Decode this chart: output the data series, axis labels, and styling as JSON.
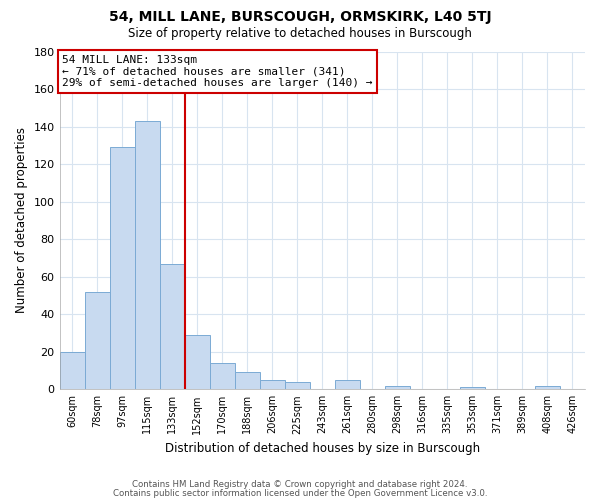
{
  "title": "54, MILL LANE, BURSCOUGH, ORMSKIRK, L40 5TJ",
  "subtitle": "Size of property relative to detached houses in Burscough",
  "xlabel": "Distribution of detached houses by size in Burscough",
  "ylabel": "Number of detached properties",
  "bin_labels": [
    "60sqm",
    "78sqm",
    "97sqm",
    "115sqm",
    "133sqm",
    "152sqm",
    "170sqm",
    "188sqm",
    "206sqm",
    "225sqm",
    "243sqm",
    "261sqm",
    "280sqm",
    "298sqm",
    "316sqm",
    "335sqm",
    "353sqm",
    "371sqm",
    "389sqm",
    "408sqm",
    "426sqm"
  ],
  "bar_heights": [
    20,
    52,
    129,
    143,
    67,
    29,
    14,
    9,
    5,
    4,
    0,
    5,
    0,
    2,
    0,
    0,
    1,
    0,
    0,
    2,
    0
  ],
  "bar_color": "#c8daf0",
  "bar_edge_color": "#7baad4",
  "marker_line_x_label": "133sqm",
  "marker_line_color": "#cc0000",
  "annotation_title": "54 MILL LANE: 133sqm",
  "annotation_line1": "← 71% of detached houses are smaller (341)",
  "annotation_line2": "29% of semi-detached houses are larger (140) →",
  "annotation_box_color": "#ffffff",
  "annotation_box_edge_color": "#cc0000",
  "ylim": [
    0,
    180
  ],
  "yticks": [
    0,
    20,
    40,
    60,
    80,
    100,
    120,
    140,
    160,
    180
  ],
  "footer_line1": "Contains HM Land Registry data © Crown copyright and database right 2024.",
  "footer_line2": "Contains public sector information licensed under the Open Government Licence v3.0.",
  "background_color": "#ffffff",
  "grid_color": "#d8e4f0"
}
